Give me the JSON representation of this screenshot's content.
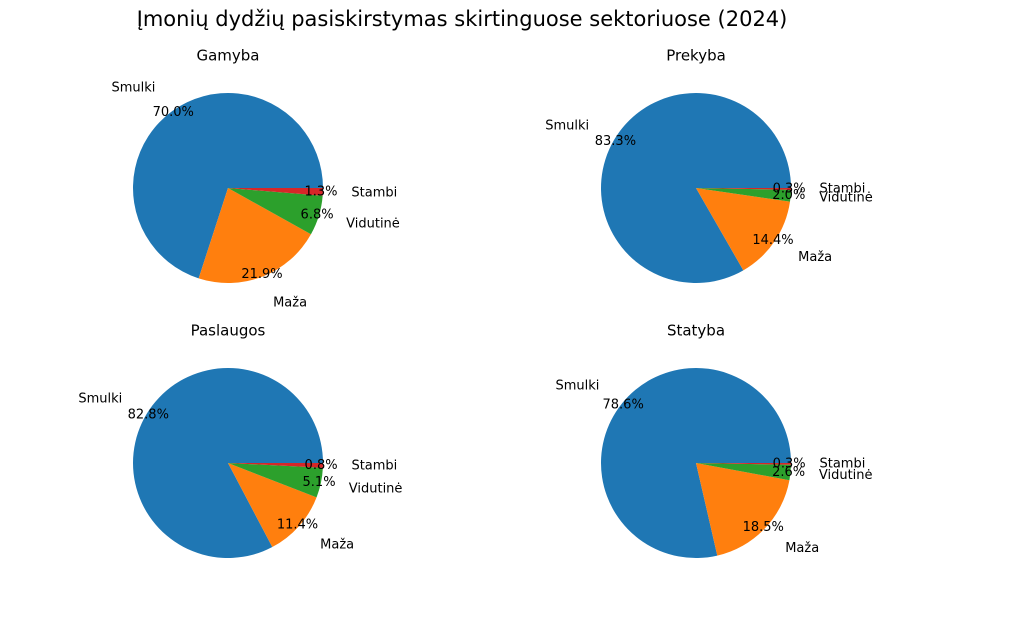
{
  "title": "Įmonių dydžių pasiskirstymas skirtinguose sektoriuose (2024)",
  "chart_data": [
    {
      "type": "pie",
      "title": "Gamyba",
      "categories": [
        "Smulki",
        "Maža",
        "Vidutinė",
        "Stambi"
      ],
      "values": [
        70.0,
        21.9,
        6.8,
        1.3
      ],
      "value_labels": [
        "70.0%",
        "21.9%",
        "6.8%",
        "1.3%"
      ],
      "colors": [
        "#1f77b4",
        "#ff7f0e",
        "#2ca02c",
        "#d62728"
      ]
    },
    {
      "type": "pie",
      "title": "Prekyba",
      "categories": [
        "Smulki",
        "Maža",
        "Vidutinė",
        "Stambi"
      ],
      "values": [
        83.3,
        14.4,
        2.0,
        0.3
      ],
      "value_labels": [
        "83.3%",
        "14.4%",
        "2.0%",
        "0.3%"
      ],
      "colors": [
        "#1f77b4",
        "#ff7f0e",
        "#2ca02c",
        "#d62728"
      ]
    },
    {
      "type": "pie",
      "title": "Paslaugos",
      "categories": [
        "Smulki",
        "Maža",
        "Vidutinė",
        "Stambi"
      ],
      "values": [
        82.8,
        11.4,
        5.1,
        0.8
      ],
      "value_labels": [
        "82.8%",
        "11.4%",
        "5.1%",
        "0.8%"
      ],
      "colors": [
        "#1f77b4",
        "#ff7f0e",
        "#2ca02c",
        "#d62728"
      ]
    },
    {
      "type": "pie",
      "title": "Statyba",
      "categories": [
        "Smulki",
        "Maža",
        "Vidutinė",
        "Stambi"
      ],
      "values": [
        78.6,
        18.5,
        2.6,
        0.3
      ],
      "value_labels": [
        "78.6%",
        "18.5%",
        "2.6%",
        "0.3%"
      ],
      "colors": [
        "#1f77b4",
        "#ff7f0e",
        "#2ca02c",
        "#d62728"
      ]
    }
  ]
}
